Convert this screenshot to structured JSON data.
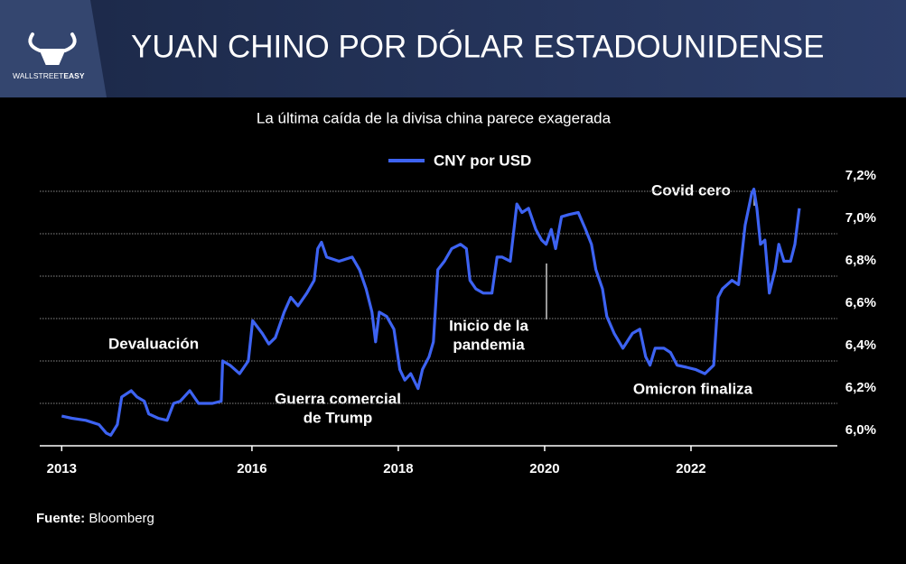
{
  "logo": [
    "WALLSTREET",
    "EASY"
  ],
  "chart_data": {
    "type": "line",
    "title": "YUAN CHINO POR DÓLAR ESTADOUNIDENSE",
    "subtitle": "La última caída de la divisa china parece exagerada",
    "x": [
      2013.4,
      2013.54,
      2013.73,
      2013.91,
      2014.01,
      2014.07,
      2014.16,
      2014.22,
      2014.35,
      2014.43,
      2014.53,
      2014.59,
      2014.72,
      2014.84,
      2014.93,
      2015.02,
      2015.15,
      2015.21,
      2015.27,
      2015.46,
      2015.58,
      2015.6,
      2015.7,
      2015.83,
      2015.95,
      2016.01,
      2016.14,
      2016.23,
      2016.32,
      2016.44,
      2016.53,
      2016.63,
      2016.75,
      2016.85,
      2016.9,
      2016.95,
      2017.02,
      2017.19,
      2017.37,
      2017.47,
      2017.56,
      2017.64,
      2017.69,
      2017.74,
      2017.84,
      2017.94,
      2018.02,
      2018.09,
      2018.17,
      2018.27,
      2018.33,
      2018.42,
      2018.48,
      2018.54,
      2018.63,
      2018.73,
      2018.85,
      2018.93,
      2018.98,
      2019.06,
      2019.16,
      2019.28,
      2019.35,
      2019.42,
      2019.53,
      2019.62,
      2019.69,
      2019.78,
      2019.88,
      2019.96,
      2020.02,
      2020.09,
      2020.15,
      2020.23,
      2020.33,
      2020.46,
      2020.56,
      2020.64,
      2020.7,
      2020.79,
      2020.85,
      2020.95,
      2021.07,
      2021.2,
      2021.3,
      2021.38,
      2021.44,
      2021.51,
      2021.63,
      2021.72,
      2021.81,
      2021.94,
      2022.06,
      2022.19,
      2022.31,
      2022.37,
      2022.43,
      2022.56,
      2022.65,
      2022.74,
      2022.83,
      2022.86,
      2022.9,
      2022.95,
      2023.01,
      2023.07,
      2023.15,
      2023.2,
      2023.27,
      2023.36,
      2023.42,
      2023.48
    ],
    "series": [
      {
        "name": "CNY por USD",
        "color": "#3d63f2",
        "values": [
          6.14,
          6.13,
          6.12,
          6.1,
          6.06,
          6.05,
          6.1,
          6.23,
          6.26,
          6.23,
          6.21,
          6.15,
          6.13,
          6.12,
          6.2,
          6.21,
          6.26,
          6.23,
          6.2,
          6.2,
          6.21,
          6.4,
          6.38,
          6.34,
          6.4,
          6.59,
          6.53,
          6.48,
          6.51,
          6.63,
          6.7,
          6.66,
          6.72,
          6.78,
          6.93,
          6.96,
          6.89,
          6.87,
          6.89,
          6.83,
          6.74,
          6.63,
          6.49,
          6.63,
          6.61,
          6.55,
          6.36,
          6.31,
          6.34,
          6.27,
          6.36,
          6.42,
          6.49,
          6.83,
          6.87,
          6.93,
          6.95,
          6.93,
          6.78,
          6.74,
          6.72,
          6.72,
          6.89,
          6.89,
          6.87,
          7.14,
          7.1,
          7.12,
          7.02,
          6.97,
          6.95,
          7.02,
          6.93,
          7.08,
          7.09,
          7.1,
          7.02,
          6.95,
          6.83,
          6.74,
          6.61,
          6.53,
          6.46,
          6.53,
          6.55,
          6.42,
          6.38,
          6.46,
          6.46,
          6.44,
          6.38,
          6.37,
          6.36,
          6.34,
          6.38,
          6.7,
          6.74,
          6.78,
          6.76,
          7.04,
          7.19,
          7.21,
          7.12,
          6.95,
          6.97,
          6.72,
          6.83,
          6.95,
          6.87,
          6.87,
          6.95,
          7.12
        ]
      }
    ],
    "xlim": [
      2013.1,
      2024.0
    ],
    "xticks": [
      {
        "value": 2013.4,
        "label": "2013"
      },
      2016,
      2018,
      2020,
      2022
    ],
    "ylim": [
      6.0,
      7.3
    ],
    "yticks": [
      {
        "value": 6.0,
        "label": "6,0%"
      },
      {
        "value": 6.2,
        "label": "6,2%"
      },
      {
        "value": 6.4,
        "label": "6,4%"
      },
      {
        "value": 6.6,
        "label": "6,6%"
      },
      {
        "value": 6.8,
        "label": "6,8%"
      },
      {
        "value": 7.0,
        "label": "7,0%"
      },
      {
        "value": 7.2,
        "label": "7,2%"
      }
    ],
    "grid": true,
    "annotations": [
      [
        "Devaluación"
      ],
      [
        "Guerra comercial",
        "de Trump"
      ],
      [
        "Inicio de la",
        "pandemia"
      ],
      [
        "Covid cero"
      ],
      [
        "Omicron finaliza"
      ]
    ],
    "source": {
      "label": "Fuente:",
      "text": "Bloomberg"
    }
  }
}
